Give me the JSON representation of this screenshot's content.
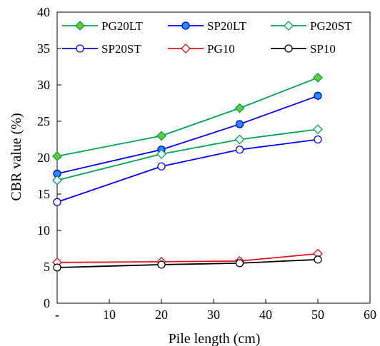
{
  "chart_data": {
    "type": "line",
    "xlabel": "Pile length (cm)",
    "ylabel": "CBR value (%)",
    "xlim": [
      0,
      60
    ],
    "ylim": [
      0,
      40
    ],
    "x_ticks": [
      "-",
      "10",
      "20",
      "30",
      "40",
      "50",
      "60"
    ],
    "y_ticks": [
      "0",
      "5",
      "10",
      "15",
      "20",
      "25",
      "30",
      "35",
      "40"
    ],
    "x": [
      0,
      20,
      35,
      50
    ],
    "grid": false,
    "legend_position": "top",
    "series": [
      {
        "name": "PG20LT",
        "values": [
          20.2,
          23.0,
          26.8,
          31.0
        ],
        "color": "#00a550",
        "marker": "diamond",
        "fill": "#66cc33"
      },
      {
        "name": "SP20LT",
        "values": [
          17.8,
          21.1,
          24.6,
          28.5
        ],
        "color": "#0000ff",
        "marker": "circle",
        "fill": "#1e90ff"
      },
      {
        "name": "PG20ST",
        "values": [
          16.9,
          20.5,
          22.5,
          23.9
        ],
        "color": "#00a550",
        "marker": "diamond",
        "fill": "#ffffff"
      },
      {
        "name": "SP20ST",
        "values": [
          13.9,
          18.8,
          21.1,
          22.5
        ],
        "color": "#0000ff",
        "marker": "circle",
        "fill": "#ffffff"
      },
      {
        "name": "PG10",
        "values": [
          5.6,
          5.7,
          5.8,
          6.8
        ],
        "color": "#e8101a",
        "marker": "diamond",
        "fill": "#ffffff"
      },
      {
        "name": "SP10",
        "values": [
          4.9,
          5.3,
          5.5,
          6.0
        ],
        "color": "#000000",
        "marker": "circle",
        "fill": "#ffffff"
      }
    ]
  }
}
